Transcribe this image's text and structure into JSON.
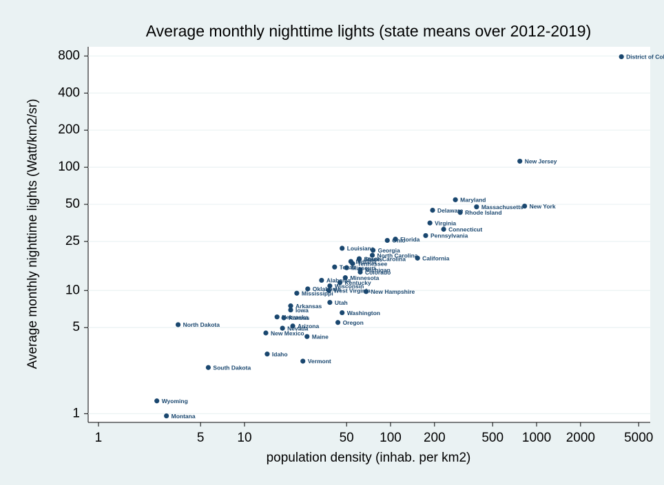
{
  "chart_data": {
    "type": "scatter",
    "title": "Average monthly nighttime lights (state means over 2012-2019)",
    "x_label": "population density (inhab. per km2)",
    "y_label": "Average monthly nighttime lights (Watt/km2/sr)",
    "color": "#1a476f",
    "log_x": true,
    "log_y": true,
    "grid": true,
    "xlim": [
      0.85,
      6000
    ],
    "ylim": [
      0.85,
      950
    ],
    "xticks": [
      1,
      5,
      10,
      50,
      100,
      200,
      500,
      1000,
      2000,
      5000
    ],
    "yticks": [
      1,
      5,
      10,
      25,
      50,
      100,
      200,
      400,
      800
    ],
    "labels": [
      "District of Columbia",
      "New Jersey",
      "Maryland",
      "Massachusetts",
      "New York",
      "Delaware",
      "Rhode Island",
      "Virginia",
      "Connecticut",
      "Pennsylvania",
      "Ohio",
      "Florida",
      "Louisiana",
      "Georgia",
      "North Carolina",
      "South Carolina",
      "Illinois",
      "Indiana",
      "Tennessee",
      "California",
      "Michigan",
      "Texas",
      "Missouri",
      "Colorado",
      "Minnesota",
      "Alabama",
      "Kentucky",
      "Wisconsin",
      "West Virginia",
      "Oklahoma",
      "New Hampshire",
      "Mississippi",
      "Utah",
      "Arkansas",
      "Iowa",
      "Washington",
      "Nebraska",
      "Kansas",
      "Oregon",
      "North Dakota",
      "Arizona",
      "Nevada",
      "New Mexico",
      "Maine",
      "Idaho",
      "Vermont",
      "South Dakota",
      "Wyoming",
      "Montana"
    ],
    "x": [
      3810,
      768,
      278,
      388,
      828,
      194,
      300,
      186,
      231,
      174,
      95,
      108,
      46.6,
      75.9,
      75,
      61,
      61,
      53.5,
      55,
      153,
      62,
      41.4,
      50,
      62,
      49,
      33.7,
      45,
      38.4,
      37.8,
      27.1,
      68,
      22.8,
      38.4,
      20.7,
      20.7,
      46.6,
      16.7,
      18.6,
      43.6,
      3.51,
      21.4,
      18.2,
      14.0,
      26.8,
      14.3,
      25.1,
      5.65,
      2.51,
      2.92
    ],
    "values": [
      789,
      112,
      54.5,
      47.7,
      48.4,
      44.8,
      43,
      35.3,
      31.4,
      27.9,
      25.5,
      26.1,
      22,
      21.2,
      19.3,
      18.1,
      17.9,
      17.2,
      16.5,
      18.3,
      14.7,
      15.5,
      15.3,
      14.1,
      12.7,
      12.1,
      11.6,
      10.9,
      10.0,
      10.3,
      9.8,
      9.5,
      8.0,
      7.5,
      6.95,
      6.6,
      6.1,
      6.0,
      5.5,
      5.28,
      5.15,
      4.94,
      4.52,
      4.23,
      3.05,
      2.67,
      2.37,
      1.27,
      0.96
    ]
  }
}
